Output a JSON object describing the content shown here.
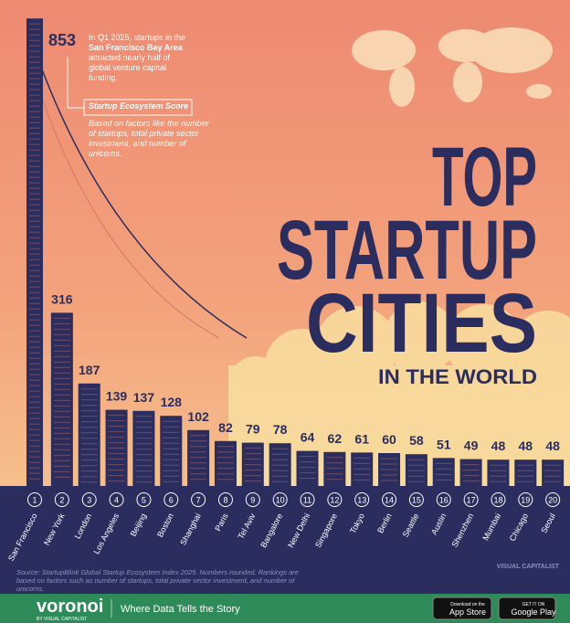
{
  "chart_data": {
    "type": "bar",
    "title_lines": [
      "TOP",
      "STARTUP",
      "CITIES"
    ],
    "subtitle": "IN THE WORLD",
    "annotation": [
      "In Q1 2025, startups in the",
      "San Francisco Bay Area",
      "attracted nearly half of global venture capital funding."
    ],
    "legend_title": "Startup Ecosystem Score",
    "legend_text": "Based on factors like the number of startups, total private sector investment, and number of unicorns.",
    "ranks": [
      1,
      2,
      3,
      4,
      5,
      6,
      7,
      8,
      9,
      10,
      11,
      12,
      13,
      14,
      15,
      16,
      17,
      18,
      19,
      20
    ],
    "categories": [
      "San Francisco",
      "New York",
      "London",
      "Los Angeles",
      "Beijing",
      "Boston",
      "Shanghai",
      "Paris",
      "Tel Aviv",
      "Bangalore",
      "New Delhi",
      "Singapore",
      "Tokyo",
      "Berlin",
      "Seattle",
      "Austin",
      "Shenzhen",
      "Mumbai",
      "Chicago",
      "Seoul"
    ],
    "values": [
      853,
      316,
      187,
      139,
      137,
      128,
      102,
      82,
      79,
      78,
      64,
      62,
      61,
      60,
      58,
      51,
      49,
      48,
      48,
      48
    ],
    "color": "#2b2d5e",
    "source": "Source: StartupBlink Global Startup Ecosystem Index 2025. Numbers rounded. Rankings are based on factors such as number of startups, total private sector investment, and number of unicorns.",
    "publisher": "VISUAL CAPITALIST",
    "footer": {
      "brand": "voronoi",
      "brand_sub": "BY VISUAL CAPITALIST",
      "tagline": "Where Data Tells the Story",
      "app_store": [
        "Download on the",
        "App Store"
      ],
      "google_play": [
        "GET IT ON",
        "Google Play"
      ]
    }
  }
}
